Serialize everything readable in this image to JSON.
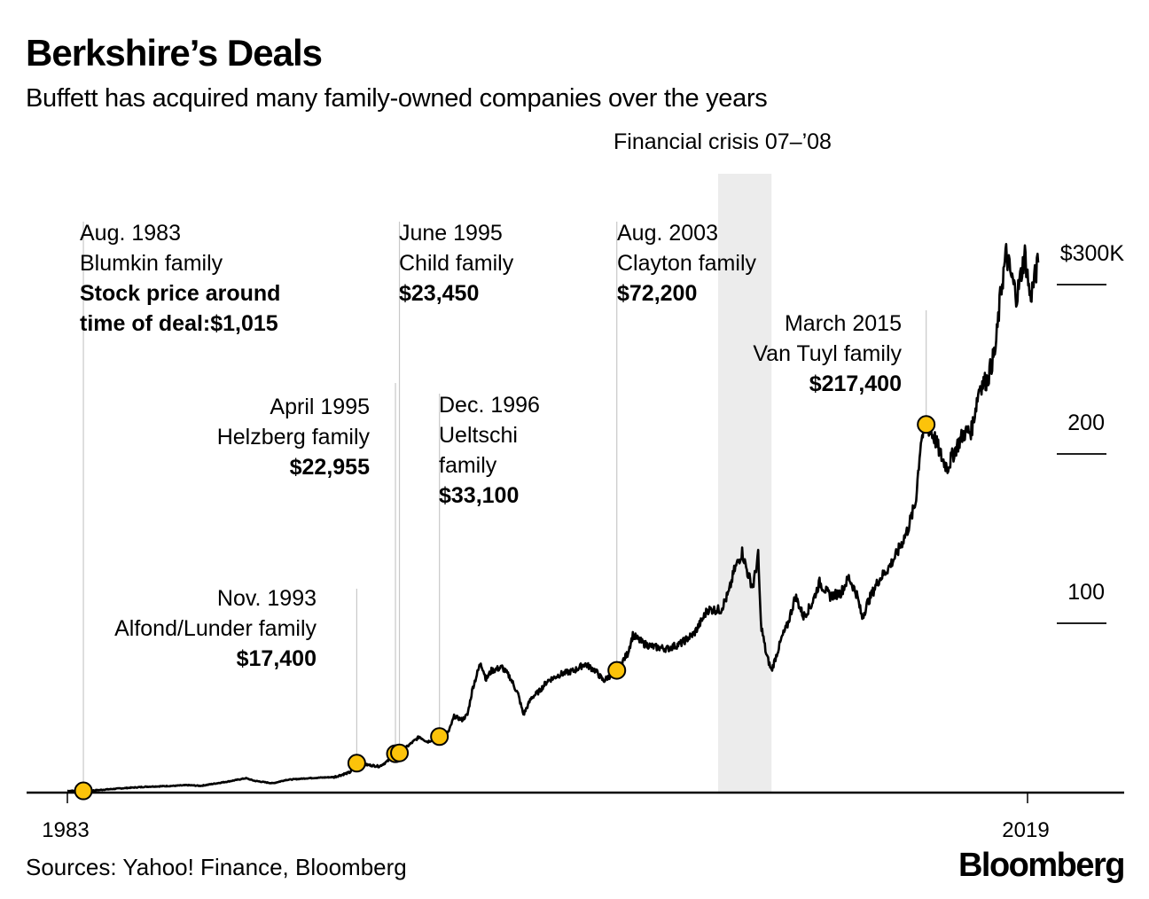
{
  "header": {
    "title": "Berkshire’s Deals",
    "subtitle": "Buffett has acquired many family-owned companies over the years"
  },
  "footer": {
    "sources": "Sources: Yahoo! Finance, Bloomberg",
    "brand": "Bloomberg"
  },
  "chart_data": {
    "type": "line",
    "title": "Berkshire’s Deals",
    "subtitle": "Buffett has acquired many family-owned companies over the years",
    "xlabel": "",
    "ylabel": "",
    "xlim": [
      1983,
      2020.5
    ],
    "ylim": [
      0,
      340
    ],
    "y_units": "thousand USD (BRK.A share price)",
    "x_ticks": [
      {
        "value": 1983,
        "label": "1983"
      },
      {
        "value": 2019,
        "label": "2019"
      }
    ],
    "y_ticks": [
      {
        "value": 100,
        "label": "100"
      },
      {
        "value": 200,
        "label": "200"
      },
      {
        "value": 300,
        "label": "$300K"
      }
    ],
    "grid": false,
    "legend": "none",
    "line_color": "#000000",
    "marker_color": "#fcc30a",
    "shaded_region": {
      "label": "Financial crisis 07–’08",
      "x_start": 2007.4,
      "x_end": 2009.4,
      "color": "#ececec"
    },
    "series": [
      {
        "name": "Berkshire Hathaway Class A share price",
        "points": [
          [
            1983.0,
            1.0
          ],
          [
            1984.0,
            1.3
          ],
          [
            1985.0,
            2.5
          ],
          [
            1986.0,
            3.5
          ],
          [
            1987.0,
            4.0
          ],
          [
            1987.5,
            4.4
          ],
          [
            1988.0,
            4.0
          ],
          [
            1989.0,
            6.5
          ],
          [
            1989.7,
            8.5
          ],
          [
            1990.0,
            7.0
          ],
          [
            1990.7,
            5.5
          ],
          [
            1991.2,
            7.5
          ],
          [
            1992.0,
            8.5
          ],
          [
            1993.0,
            9.2
          ],
          [
            1993.6,
            12.0
          ],
          [
            1993.85,
            17.4
          ],
          [
            1994.2,
            16.5
          ],
          [
            1994.7,
            15.5
          ],
          [
            1995.0,
            18.5
          ],
          [
            1995.3,
            23.0
          ],
          [
            1995.5,
            24.0
          ],
          [
            1995.8,
            28.0
          ],
          [
            1996.2,
            33.0
          ],
          [
            1996.5,
            30.0
          ],
          [
            1996.95,
            33.1
          ],
          [
            1997.3,
            36.0
          ],
          [
            1997.5,
            45.0
          ],
          [
            1997.8,
            43.0
          ],
          [
            1998.0,
            46.0
          ],
          [
            1998.2,
            62.0
          ],
          [
            1998.5,
            77.0
          ],
          [
            1998.7,
            67.0
          ],
          [
            1998.9,
            72.0
          ],
          [
            1999.3,
            74.0
          ],
          [
            1999.6,
            68.0
          ],
          [
            1999.9,
            58.0
          ],
          [
            2000.1,
            46.0
          ],
          [
            2000.4,
            56.0
          ],
          [
            2000.7,
            60.0
          ],
          [
            2001.0,
            66.0
          ],
          [
            2001.5,
            70.0
          ],
          [
            2002.0,
            72.0
          ],
          [
            2002.4,
            76.0
          ],
          [
            2002.8,
            72.0
          ],
          [
            2003.1,
            66.0
          ],
          [
            2003.6,
            72.2
          ],
          [
            2004.0,
            82.0
          ],
          [
            2004.2,
            93.0
          ],
          [
            2004.6,
            88.0
          ],
          [
            2005.0,
            86.0
          ],
          [
            2005.5,
            85.0
          ],
          [
            2006.0,
            88.0
          ],
          [
            2006.5,
            94.0
          ],
          [
            2006.8,
            102.0
          ],
          [
            2007.0,
            108.0
          ],
          [
            2007.5,
            108.0
          ],
          [
            2007.8,
            118.0
          ],
          [
            2008.0,
            131.0
          ],
          [
            2008.3,
            142.0
          ],
          [
            2008.5,
            130.0
          ],
          [
            2008.7,
            121.0
          ],
          [
            2008.9,
            140.0
          ],
          [
            2009.0,
            100.0
          ],
          [
            2009.2,
            82.0
          ],
          [
            2009.4,
            72.0
          ],
          [
            2009.8,
            92.0
          ],
          [
            2010.0,
            99.0
          ],
          [
            2010.3,
            116.0
          ],
          [
            2010.6,
            104.0
          ],
          [
            2010.9,
            111.0
          ],
          [
            2011.2,
            124.0
          ],
          [
            2011.6,
            116.0
          ],
          [
            2012.0,
            118.0
          ],
          [
            2012.3,
            127.0
          ],
          [
            2012.6,
            117.0
          ],
          [
            2012.8,
            103.0
          ],
          [
            2013.0,
            112.0
          ],
          [
            2013.4,
            125.0
          ],
          [
            2013.8,
            133.0
          ],
          [
            2014.1,
            141.0
          ],
          [
            2014.5,
            155.0
          ],
          [
            2014.8,
            171.0
          ],
          [
            2015.0,
            208.0
          ],
          [
            2015.2,
            217.4
          ],
          [
            2015.5,
            210.0
          ],
          [
            2015.8,
            197.0
          ],
          [
            2016.0,
            192.0
          ],
          [
            2016.3,
            203.0
          ],
          [
            2016.6,
            212.0
          ],
          [
            2016.9,
            214.0
          ],
          [
            2017.2,
            240.0
          ],
          [
            2017.5,
            244.0
          ],
          [
            2017.8,
            262.0
          ],
          [
            2018.0,
            296.0
          ],
          [
            2018.2,
            318.0
          ],
          [
            2018.4,
            304.0
          ],
          [
            2018.6,
            293.0
          ],
          [
            2018.9,
            318.0
          ],
          [
            2019.1,
            292.0
          ],
          [
            2019.4,
            313.0
          ]
        ]
      }
    ],
    "annotations": [
      {
        "date": "Aug. 1983",
        "family": "Blumkin family",
        "price_label": "Stock price around time of deal:$1,015",
        "x": 1983.6,
        "price": 1.015
      },
      {
        "date": "Nov. 1993",
        "family": "Alfond/Lunder family",
        "price_label": "$17,400",
        "x": 1993.85,
        "price": 17.4
      },
      {
        "date": "April 1995",
        "family": "Helzberg family",
        "price_label": "$22,955",
        "x": 1995.3,
        "price": 22.955
      },
      {
        "date": "June 1995",
        "family": "Child family",
        "price_label": "$23,450",
        "x": 1995.45,
        "price": 23.45
      },
      {
        "date": "Dec. 1996",
        "family": "Ueltschi family",
        "price_label": "$33,100",
        "x": 1996.95,
        "price": 33.1
      },
      {
        "date": "Aug. 2003",
        "family": "Clayton family",
        "price_label": "$72,200",
        "x": 2003.6,
        "price": 72.2
      },
      {
        "date": "March 2015",
        "family": "Van Tuyl family",
        "price_label": "$217,400",
        "x": 2015.2,
        "price": 217.4
      }
    ]
  },
  "labels": {
    "crisis": "Financial crisis 07–’08",
    "blumkin": {
      "l1": "Aug. 1983",
      "l2": "Blumkin family",
      "l3": "Stock price around",
      "l4": "time of deal:$1,015"
    },
    "alfond": {
      "l1": "Nov. 1993",
      "l2": "Alfond/Lunder family",
      "l3": "$17,400"
    },
    "helzberg": {
      "l1": "April 1995",
      "l2": "Helzberg family",
      "l3": "$22,955"
    },
    "child": {
      "l1": "June 1995",
      "l2": "Child family",
      "l3": "$23,450"
    },
    "ueltschi": {
      "l1": "Dec. 1996",
      "l2": "Ueltschi",
      "l3": "family",
      "l4": "$33,100"
    },
    "clayton": {
      "l1": "Aug. 2003",
      "l2": "Clayton family",
      "l3": "$72,200"
    },
    "vantuyl": {
      "l1": "March 2015",
      "l2": "Van Tuyl family",
      "l3": "$217,400"
    }
  }
}
